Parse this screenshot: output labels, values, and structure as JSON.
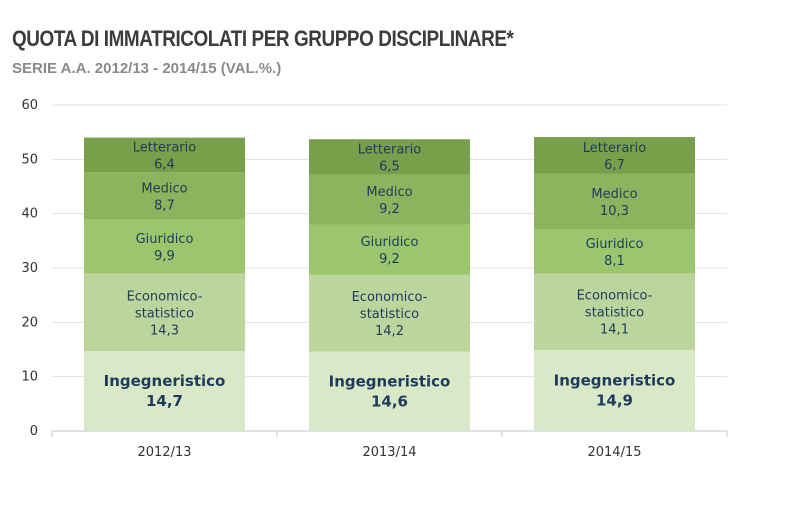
{
  "header": {
    "title": "QUOTA DI IMMATRICOLATI PER GRUPPO DISCIPLINARE*",
    "subtitle": "SERIE A.A. 2012/13 - 2014/15 (VAL.%.)"
  },
  "chart_data": {
    "type": "bar",
    "stacked": true,
    "title": "",
    "xlabel": "",
    "ylabel": "",
    "ylim": [
      0,
      60
    ],
    "yticks": [
      0,
      10,
      20,
      30,
      40,
      50,
      60
    ],
    "grid": true,
    "legend": "none",
    "categories": [
      "2012/13",
      "2013/14",
      "2014/15"
    ],
    "series": [
      {
        "name": "Ingegneristico",
        "values": [
          14.7,
          14.6,
          14.9
        ],
        "labels": [
          "14,7",
          "14,6",
          "14,9"
        ],
        "color": "#d9e8c6"
      },
      {
        "name": "Economico-statistico",
        "values": [
          14.3,
          14.2,
          14.1
        ],
        "labels": [
          "14,3",
          "14,2",
          "14,1"
        ],
        "color": "#bcd59c"
      },
      {
        "name": "Giuridico",
        "values": [
          9.9,
          9.2,
          8.1
        ],
        "labels": [
          "9,9",
          "9,2",
          "8,1"
        ],
        "color": "#9cc66e"
      },
      {
        "name": "Medico",
        "values": [
          8.7,
          9.2,
          10.3
        ],
        "labels": [
          "8,7",
          "9,2",
          "10,3"
        ],
        "color": "#8cb35d"
      },
      {
        "name": "Letterario",
        "values": [
          6.4,
          6.5,
          6.7
        ],
        "labels": [
          "6,4",
          "6,5",
          "6,7"
        ],
        "color": "#78a04a"
      }
    ]
  }
}
